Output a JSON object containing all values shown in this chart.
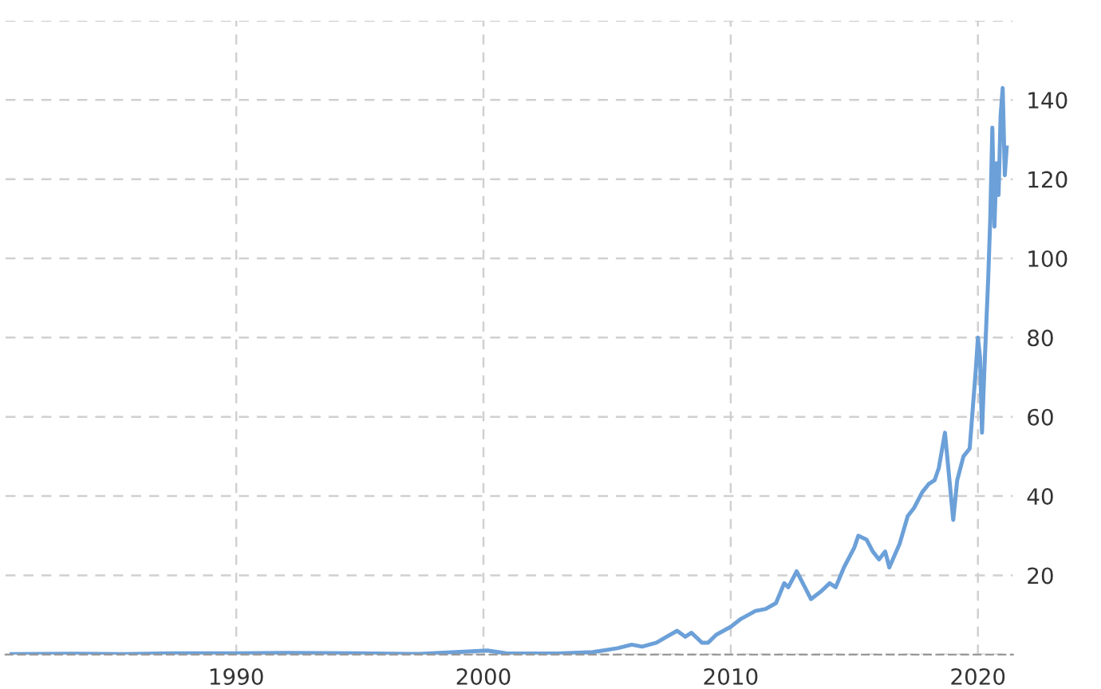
{
  "chart_data": {
    "type": "line",
    "color": "#6ca0d8",
    "grid": true,
    "line_style": "solid",
    "marker": "none",
    "x": [
      "1980-12",
      "1983-06",
      "1985-06",
      "1987-06",
      "1990-01",
      "1992-01",
      "1995-01",
      "1997-06",
      "1999-11",
      "2000-03",
      "2000-12",
      "2003-01",
      "2004-06",
      "2005-06",
      "2006-01",
      "2006-06",
      "2007-01",
      "2007-06",
      "2007-11",
      "2008-03",
      "2008-06",
      "2008-11",
      "2009-02",
      "2009-06",
      "2010-01",
      "2010-06",
      "2011-01",
      "2011-06",
      "2011-11",
      "2012-03",
      "2012-05",
      "2012-09",
      "2013-01",
      "2013-04",
      "2013-09",
      "2014-01",
      "2014-04",
      "2014-08",
      "2015-01",
      "2015-03",
      "2015-07",
      "2015-10",
      "2016-01",
      "2016-04",
      "2016-06",
      "2016-11",
      "2017-03",
      "2017-06",
      "2017-10",
      "2018-01",
      "2018-04",
      "2018-06",
      "2018-09",
      "2018-11",
      "2019-01",
      "2019-03",
      "2019-06",
      "2019-09",
      "2019-12",
      "2020-01",
      "2020-02",
      "2020-03",
      "2020-04",
      "2020-06",
      "2020-07",
      "2020-08",
      "2020-09",
      "2020-10",
      "2020-11",
      "2020-12",
      "2021-01",
      "2021-02",
      "2021-03"
    ],
    "values": [
      0.1,
      0.2,
      0.1,
      0.3,
      0.3,
      0.4,
      0.3,
      0.15,
      0.9,
      1.0,
      0.3,
      0.25,
      0.6,
      1.6,
      2.5,
      2.0,
      3,
      4.5,
      6,
      4.5,
      5.5,
      3,
      3,
      5,
      7,
      9,
      11,
      11.5,
      13,
      18,
      17,
      21,
      17,
      14,
      16,
      18,
      17,
      22,
      27,
      30,
      29,
      26,
      24,
      26,
      22,
      28,
      35,
      37,
      41,
      43,
      44,
      47,
      56,
      45,
      34,
      44,
      50,
      52,
      72,
      80,
      75,
      56,
      70,
      95,
      110,
      133,
      108,
      124,
      116,
      136,
      143,
      121,
      128
    ],
    "xlim": [
      "1980-09",
      "2021-06"
    ],
    "ylim": [
      0,
      160
    ],
    "xticks": [
      {
        "value": "1990-01",
        "label": "1990"
      },
      {
        "value": "2000-01",
        "label": "2000"
      },
      {
        "value": "2010-01",
        "label": "2010"
      },
      {
        "value": "2020-01",
        "label": "2020"
      }
    ],
    "yticks": [
      {
        "value": 0,
        "label": null
      },
      20,
      40,
      60,
      80,
      100,
      120,
      140,
      {
        "value": 160,
        "label": null
      }
    ]
  }
}
